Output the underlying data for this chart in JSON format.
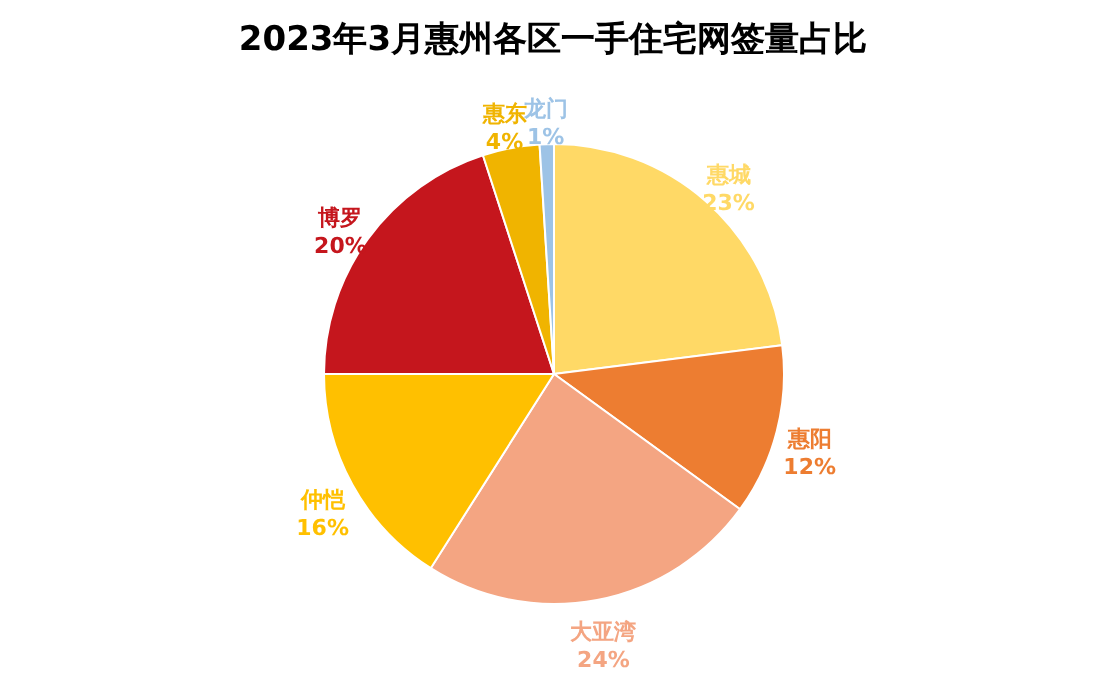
{
  "chart_data": {
    "type": "pie",
    "title": "2023年3月惠州各区一手住宅网签量占比",
    "categories": [
      "惠城",
      "惠阳",
      "大亚湾",
      "仲恺",
      "博罗",
      "惠东",
      "龙门"
    ],
    "values": [
      23,
      12,
      24,
      16,
      20,
      4,
      1
    ],
    "colors": [
      "#ffd966",
      "#ed7d31",
      "#f4a582",
      "#ffc000",
      "#c5161d",
      "#f0b400",
      "#9dc3e6"
    ],
    "value_labels": [
      "23%",
      "12%",
      "24%",
      "16%",
      "20%",
      "4%",
      "1%"
    ],
    "legend": false
  }
}
